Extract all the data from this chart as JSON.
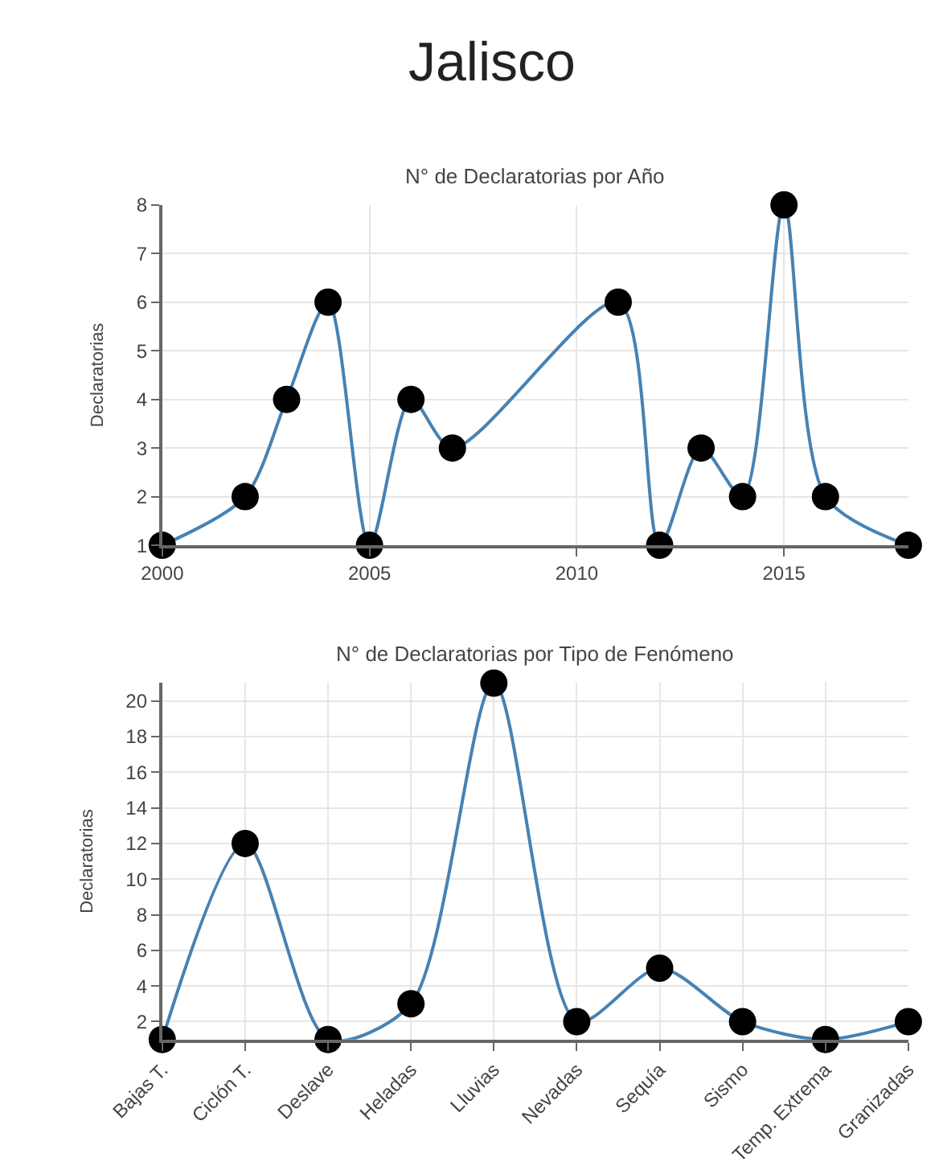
{
  "chart_data": [
    {
      "type": "line",
      "title": "Jalisco",
      "subtitle": "N° de Declaratorias por Año",
      "ylabel": "Declaratorias",
      "x": [
        2000,
        2002,
        2003,
        2004,
        2005,
        2006,
        2007,
        2011,
        2012,
        2013,
        2014,
        2015,
        2016,
        2018
      ],
      "series": [
        {
          "color": "#4682b4",
          "values": [
            1,
            2,
            4,
            6,
            1,
            4,
            3,
            6,
            1,
            3,
            2,
            8,
            2,
            1
          ]
        }
      ],
      "xlim": [
        2000,
        2018
      ],
      "xticks": [
        2000,
        2005,
        2010,
        2015
      ],
      "ylim": [
        1,
        8
      ],
      "yticks": [
        1,
        2,
        3,
        4,
        5,
        6,
        7,
        8
      ],
      "grid": true,
      "marker": "circle",
      "line_style": "solid"
    },
    {
      "type": "line",
      "title": "N° de Declaratorias por Tipo de Fenómeno",
      "ylabel": "Declaratorias",
      "categories": [
        "Bajas T.",
        "Ciclón T.",
        "Deslave",
        "Heladas",
        "Lluvias",
        "Nevadas",
        "Sequía",
        "Sismo",
        "Temp. Extrema",
        "Granizadas"
      ],
      "series": [
        {
          "color": "#4682b4",
          "values": [
            1,
            12,
            1,
            3,
            21,
            2,
            5,
            2,
            1,
            2
          ]
        }
      ],
      "ylim": [
        1,
        21
      ],
      "yticks": [
        2,
        4,
        6,
        8,
        10,
        12,
        14,
        16,
        18,
        20
      ],
      "grid": true,
      "marker": "circle",
      "line_style": "solid"
    }
  ]
}
